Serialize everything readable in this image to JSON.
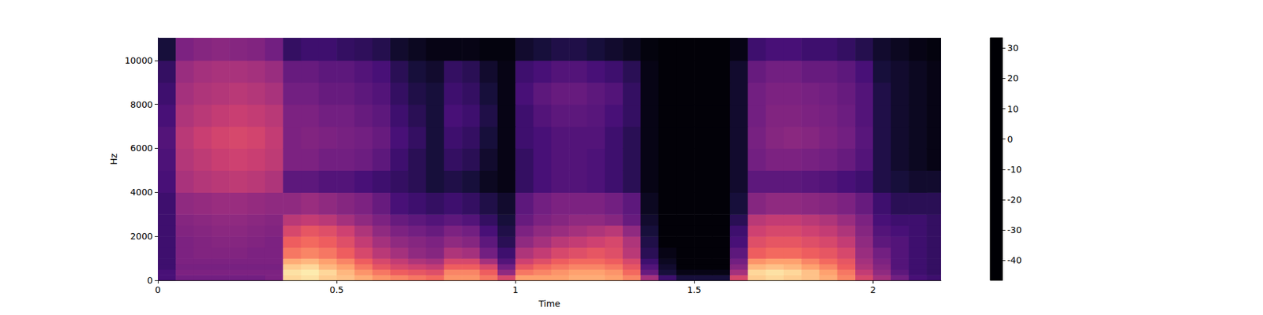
{
  "chart_data": {
    "type": "spectrogram",
    "x_label": "Time",
    "y_label": "Hz",
    "xlim": [
      0,
      2.19
    ],
    "xticks": [
      0,
      0.5,
      1,
      1.5,
      2
    ],
    "ylim": [
      0,
      11025
    ],
    "yticks": [
      0,
      2000,
      4000,
      6000,
      8000,
      10000
    ],
    "x_edges": [
      0,
      0.05,
      0.1,
      0.15,
      0.2,
      0.25,
      0.3,
      0.35,
      0.4,
      0.45,
      0.5,
      0.55,
      0.6,
      0.65,
      0.7,
      0.75,
      0.8,
      0.85,
      0.9,
      0.95,
      1,
      1.05,
      1.1,
      1.15,
      1.2,
      1.25,
      1.3,
      1.35,
      1.4,
      1.45,
      1.5,
      1.55,
      1.6,
      1.65,
      1.7,
      1.75,
      1.8,
      1.85,
      1.9,
      1.95,
      2,
      2.05,
      2.1,
      2.15,
      2.19
    ],
    "y_edges": [
      0,
      250,
      500,
      750,
      1000,
      1500,
      2000,
      2500,
      3000,
      4000,
      5000,
      6000,
      7000,
      8000,
      9000,
      10000,
      11025
    ],
    "cells": [
      [
        -28,
        -20,
        -20,
        -20,
        -20,
        -20,
        -18,
        26,
        28,
        24,
        22,
        18,
        14,
        12,
        10,
        8,
        14,
        14,
        10,
        0,
        16,
        16,
        16,
        18,
        18,
        16,
        12,
        -10,
        -30,
        -38,
        -38,
        -38,
        0,
        24,
        26,
        24,
        22,
        18,
        12,
        0,
        -10,
        -20,
        -28,
        -30
      ],
      [
        -28,
        -18,
        -18,
        -18,
        -18,
        -18,
        -18,
        28,
        30,
        26,
        20,
        14,
        10,
        6,
        4,
        2,
        12,
        12,
        6,
        -14,
        10,
        12,
        14,
        16,
        16,
        14,
        8,
        -22,
        -38,
        -44,
        -44,
        -44,
        -10,
        26,
        28,
        26,
        22,
        16,
        10,
        -4,
        -14,
        -24,
        -30,
        -32
      ],
      [
        -30,
        -19,
        -19,
        -19,
        -19,
        -19,
        -19,
        24,
        26,
        20,
        16,
        10,
        4,
        0,
        -2,
        -4,
        6,
        6,
        0,
        -20,
        4,
        8,
        10,
        12,
        12,
        10,
        4,
        -26,
        -40,
        -46,
        -46,
        -46,
        -16,
        20,
        22,
        20,
        16,
        12,
        6,
        -8,
        -16,
        -26,
        -30,
        -32
      ],
      [
        -30,
        -18,
        -18,
        -18,
        -18,
        -18,
        -18,
        18,
        20,
        16,
        12,
        6,
        0,
        -4,
        -8,
        -10,
        0,
        0,
        -10,
        -26,
        -2,
        2,
        6,
        8,
        8,
        6,
        0,
        -30,
        -42,
        -46,
        -46,
        -46,
        -20,
        14,
        16,
        16,
        12,
        8,
        4,
        -10,
        -18,
        -26,
        -30,
        -32
      ],
      [
        -30,
        -18,
        -17,
        -17,
        -17,
        -18,
        -18,
        10,
        12,
        10,
        6,
        0,
        -6,
        -10,
        -14,
        -16,
        -8,
        -10,
        -20,
        -30,
        -8,
        -4,
        0,
        2,
        4,
        2,
        -6,
        -34,
        -44,
        -46,
        -46,
        -46,
        -24,
        6,
        8,
        8,
        6,
        4,
        0,
        -12,
        -20,
        -26,
        -30,
        -32
      ],
      [
        -30,
        -18,
        -17,
        -16,
        -16,
        -17,
        -18,
        6,
        8,
        6,
        2,
        -4,
        -10,
        -14,
        -16,
        -18,
        -14,
        -16,
        -24,
        -34,
        -14,
        -10,
        -6,
        -4,
        -2,
        0,
        -8,
        -36,
        -46,
        -46,
        -46,
        -46,
        -28,
        2,
        4,
        4,
        2,
        0,
        -4,
        -14,
        -24,
        -26,
        -30,
        -32
      ],
      [
        -30,
        -17,
        -16,
        -15,
        -15,
        -16,
        -17,
        0,
        4,
        2,
        -2,
        -8,
        -14,
        -18,
        -20,
        -22,
        -18,
        -20,
        -28,
        -36,
        -18,
        -14,
        -12,
        -10,
        -8,
        -6,
        -14,
        -38,
        -46,
        -46,
        -46,
        -46,
        -30,
        -2,
        0,
        0,
        -2,
        -4,
        -8,
        -16,
        -26,
        -28,
        -30,
        -32
      ],
      [
        -30,
        -16,
        -15,
        -14,
        -14,
        -15,
        -16,
        -6,
        -4,
        -6,
        -10,
        -14,
        -18,
        -22,
        -24,
        -26,
        -24,
        -26,
        -32,
        -38,
        -22,
        -18,
        -16,
        -14,
        -14,
        -16,
        -22,
        -40,
        -46,
        -46,
        -46,
        -46,
        -34,
        -6,
        -4,
        -4,
        -6,
        -8,
        -12,
        -18,
        -28,
        -30,
        -30,
        -32
      ],
      [
        -30,
        -14,
        -13,
        -12,
        -12,
        -13,
        -14,
        -14,
        -12,
        -14,
        -16,
        -18,
        -22,
        -28,
        -30,
        -32,
        -30,
        -32,
        -36,
        -40,
        -24,
        -20,
        -18,
        -18,
        -18,
        -20,
        -24,
        -42,
        -46,
        -46,
        -46,
        -46,
        -38,
        -16,
        -14,
        -14,
        -15,
        -16,
        -18,
        -22,
        -30,
        -34,
        -34,
        -34
      ],
      [
        -28,
        -9,
        -7,
        -6,
        -5,
        -6,
        -8,
        -24,
        -24,
        -26,
        -26,
        -28,
        -30,
        -32,
        -34,
        -38,
        -36,
        -38,
        -42,
        -44,
        -32,
        -28,
        -26,
        -26,
        -27,
        -30,
        -34,
        -44,
        -46,
        -46,
        -46,
        -46,
        -40,
        -24,
        -24,
        -24,
        -25,
        -26,
        -28,
        -30,
        -36,
        -38,
        -40,
        -40
      ],
      [
        -27,
        -7,
        -5,
        -3,
        -2,
        -3,
        -5,
        -18,
        -18,
        -20,
        -20,
        -21,
        -24,
        -30,
        -34,
        -38,
        -32,
        -34,
        -40,
        -44,
        -32,
        -28,
        -26,
        -26,
        -27,
        -30,
        -34,
        -44,
        -46,
        -46,
        -46,
        -46,
        -40,
        -20,
        -18,
        -18,
        -19,
        -20,
        -22,
        -26,
        -36,
        -40,
        -42,
        -44
      ],
      [
        -26,
        -6,
        -3,
        -1,
        0,
        -1,
        -4,
        -18,
        -17,
        -18,
        -19,
        -20,
        -22,
        -28,
        -32,
        -38,
        -30,
        -32,
        -38,
        -44,
        -30,
        -28,
        -26,
        -26,
        -26,
        -30,
        -34,
        -44,
        -46,
        -46,
        -46,
        -46,
        -40,
        -19,
        -16,
        -15,
        -16,
        -18,
        -20,
        -25,
        -36,
        -40,
        -42,
        -44
      ],
      [
        -28,
        -8,
        -6,
        -4,
        -3,
        -4,
        -6,
        -18,
        -18,
        -20,
        -20,
        -22,
        -24,
        -30,
        -34,
        -38,
        -28,
        -30,
        -36,
        -44,
        -30,
        -26,
        -24,
        -24,
        -25,
        -28,
        -32,
        -44,
        -46,
        -46,
        -46,
        -46,
        -40,
        -20,
        -17,
        -17,
        -18,
        -19,
        -21,
        -26,
        -36,
        -40,
        -42,
        -44
      ],
      [
        -30,
        -10,
        -8,
        -7,
        -6,
        -7,
        -9,
        -20,
        -20,
        -22,
        -22,
        -24,
        -26,
        -32,
        -36,
        -38,
        -30,
        -32,
        -38,
        -44,
        -28,
        -24,
        -22,
        -22,
        -24,
        -26,
        -32,
        -44,
        -46,
        -46,
        -46,
        -46,
        -40,
        -20,
        -18,
        -18,
        -19,
        -20,
        -22,
        -26,
        -36,
        -40,
        -42,
        -44
      ],
      [
        -32,
        -12,
        -10,
        -9,
        -9,
        -10,
        -12,
        -22,
        -22,
        -24,
        -24,
        -26,
        -28,
        -34,
        -38,
        -40,
        -32,
        -34,
        -40,
        -44,
        -30,
        -28,
        -26,
        -26,
        -28,
        -30,
        -34,
        -44,
        -46,
        -46,
        -46,
        -46,
        -40,
        -22,
        -20,
        -20,
        -22,
        -22,
        -24,
        -28,
        -38,
        -40,
        -42,
        -44
      ],
      [
        -38,
        -18,
        -16,
        -15,
        -16,
        -17,
        -20,
        -32,
        -30,
        -30,
        -32,
        -33,
        -35,
        -40,
        -42,
        -44,
        -44,
        -44,
        -45,
        -45,
        -40,
        -38,
        -36,
        -36,
        -38,
        -40,
        -42,
        -45,
        -46,
        -46,
        -46,
        -46,
        -44,
        -30,
        -28,
        -28,
        -30,
        -30,
        -32,
        -35,
        -40,
        -42,
        -44,
        -45
      ]
    ],
    "colorbar": {
      "range": [
        -46.6,
        33.4
      ],
      "ticks": [
        -40,
        -30,
        -20,
        -10,
        0,
        10,
        20,
        30
      ]
    }
  }
}
